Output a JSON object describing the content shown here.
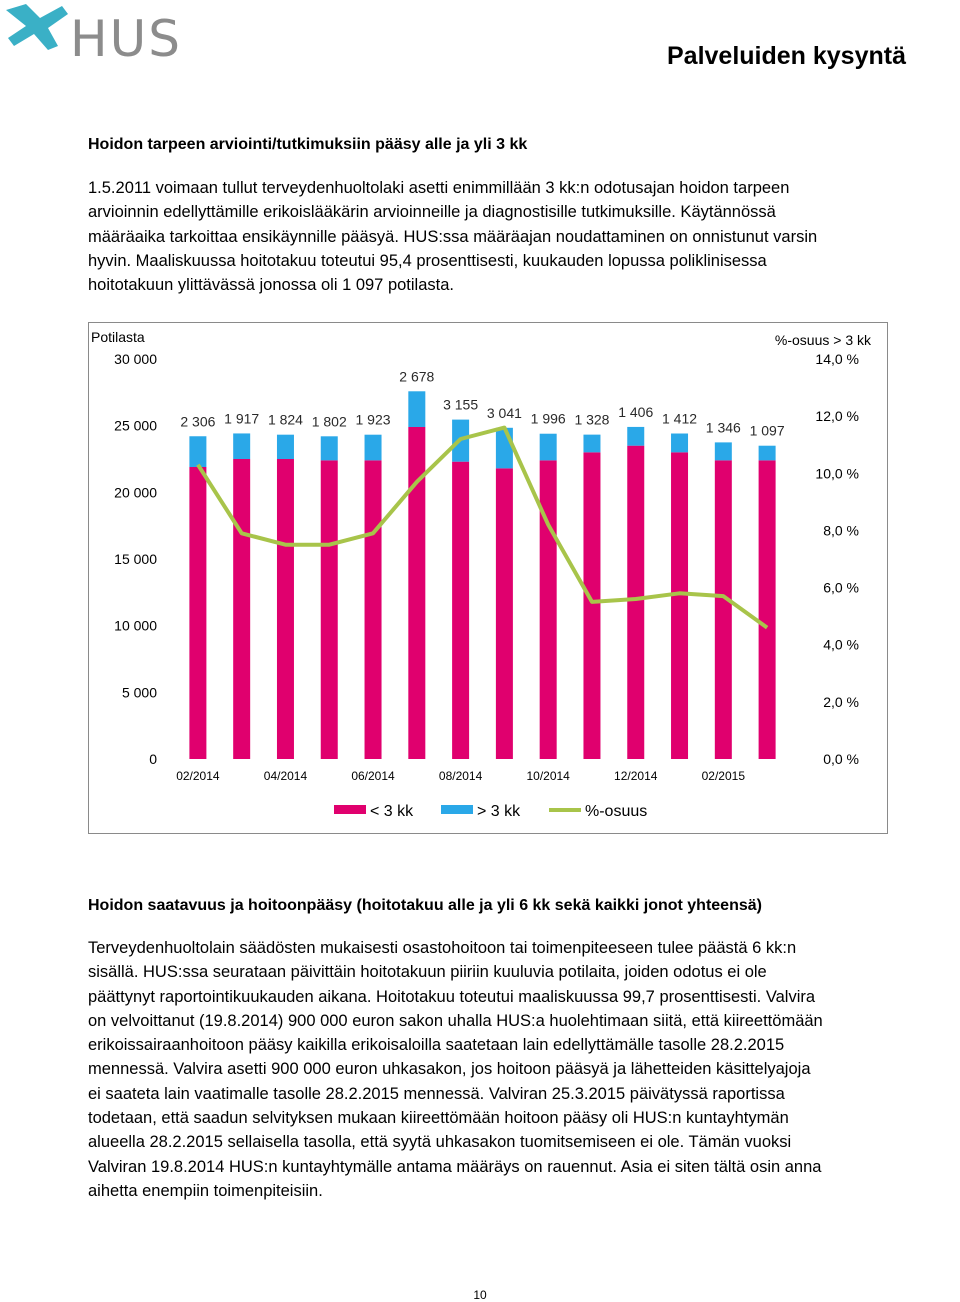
{
  "header": {
    "logo_text": "HUS",
    "page_title": "Palveluiden kysyntä"
  },
  "section1": {
    "heading": "Hoidon tarpeen arviointi/tutkimuksiin pääsy alle ja yli 3 kk",
    "lines": [
      "1.5.2011 voimaan tullut terveydenhuoltolaki asetti enimmillään 3 kk:n odotusajan hoidon tarpeen",
      "arvioinnin edellyttämille erikoislääkärin arvioinneille ja diagnostisille tutkimuksille. Käytännössä",
      "määräaika tarkoittaa ensikäynnille pääsyä. HUS:ssa määräajan noudattaminen on onnistunut varsin",
      "hyvin. Maaliskuussa hoitotakuu toteutui 95,4 prosenttisesti, kuukauden lopussa poliklinisessa",
      "hoitotakuun ylittävässä jonossa oli 1 097 potilasta."
    ]
  },
  "chart_data": {
    "type": "bar",
    "stacked": true,
    "left_axis_label": "Potilasta",
    "right_axis_label": "%-osuus > 3 kk",
    "x_tick_labels": [
      "02/2014",
      "04/2014",
      "06/2014",
      "08/2014",
      "10/2014",
      "12/2014",
      "02/2015"
    ],
    "left_ticks": [
      "0",
      "5 000",
      "10 000",
      "15 000",
      "20 000",
      "25 000",
      "30 000"
    ],
    "right_ticks": [
      "0,0 %",
      "2,0 %",
      "4,0 %",
      "6,0 %",
      "8,0 %",
      "10,0 %",
      "12,0 %",
      "14,0 %"
    ],
    "ylim_left": [
      0,
      30000
    ],
    "ylim_right": [
      0,
      14
    ],
    "series": [
      {
        "name": "< 3 kk",
        "color": "#e0006e",
        "values": [
          21900,
          22500,
          22500,
          22400,
          22400,
          24900,
          22300,
          21800,
          22400,
          23000,
          23500,
          23000,
          22400,
          22400
        ]
      },
      {
        "name": "> 3 kk",
        "color": "#2aa8e8",
        "values": [
          2306,
          1917,
          1824,
          1802,
          1923,
          2678,
          3155,
          3041,
          1996,
          1328,
          1406,
          1412,
          1346,
          1097
        ]
      },
      {
        "name": "%-osuus",
        "color": "#a8c44a",
        "type": "line",
        "axis": "right",
        "values": [
          10.3,
          7.9,
          7.5,
          7.5,
          7.9,
          9.7,
          11.2,
          11.6,
          8.2,
          5.5,
          5.6,
          5.8,
          5.7,
          4.6
        ]
      }
    ],
    "data_labels": [
      "2 306",
      "1 917",
      "1 824",
      "1 802",
      "1 923",
      "2 678",
      "3 155",
      "3 041",
      "1 996",
      "1 328",
      "1 406",
      "1 412",
      "1 346",
      "1 097"
    ],
    "legend": [
      "< 3 kk",
      "> 3 kk",
      "%-osuus"
    ],
    "legend_position": "bottom",
    "grid": false
  },
  "section2": {
    "heading": "Hoidon saatavuus ja hoitoonpääsy (hoitotakuu alle ja yli 6 kk sekä kaikki jonot yhteensä)",
    "lines": [
      "Terveydenhuoltolain säädösten mukaisesti osastohoitoon tai toimenpiteeseen tulee päästä 6 kk:n",
      "sisällä. HUS:ssa seurataan päivittäin hoitotakuun piiriin kuuluvia potilaita, joiden odotus ei ole",
      "päättynyt raportointikuukauden aikana. Hoitotakuu toteutui maaliskuussa 99,7 prosenttisesti. Valvira",
      "on velvoittanut (19.8.2014) 900 000 euron sakon uhalla HUS:a huolehtimaan siitä, että kiireettömään",
      "erikoissairaanhoitoon pääsy kaikilla erikoisaloilla saatetaan lain edellyttämälle tasolle 28.2.2015",
      "mennessä. Valvira asetti 900 000 euron uhkasakon, jos hoitoon pääsyä ja lähetteiden käsittelyajoja",
      "ei saateta lain vaatimalle tasolle 28.2.2015 mennessä. Valviran 25.3.2015 päivätyssä raportissa",
      "todetaan, että saadun selvityksen mukaan kiireettömään hoitoon pääsy oli HUS:n kuntayhtymän",
      "alueella 28.2.2015 sellaisella tasolla, että syytä uhkasakon tuomitsemiseen ei ole. Tämän vuoksi",
      "Valviran 19.8.2014 HUS:n kuntayhtymälle antama määräys on rauennut. Asia ei siten tältä osin anna",
      "aihetta enempiin toimenpiteisiin."
    ]
  },
  "footer": {
    "page_number": "10"
  }
}
